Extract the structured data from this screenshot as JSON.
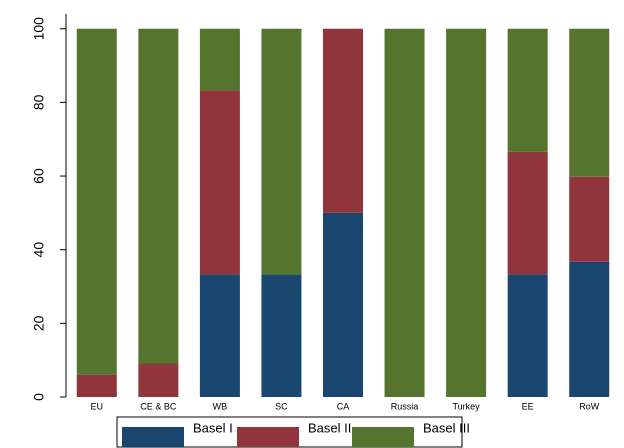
{
  "chart_data": {
    "type": "stacked_bar",
    "categories": [
      "EU",
      "CE & BC",
      "WB",
      "SC",
      "CA",
      "Russia",
      "Turkey",
      "EE",
      "RoW"
    ],
    "series": [
      {
        "name": "Basel I",
        "color": "#1a476f",
        "values": [
          0,
          0,
          33.3,
          33.3,
          50,
          0,
          0,
          33.3,
          36.7
        ]
      },
      {
        "name": "Basel II",
        "color": "#90353b",
        "values": [
          6,
          9.1,
          50,
          0,
          50,
          0,
          0,
          33.3,
          23.1
        ]
      },
      {
        "name": "Basel III",
        "color": "#55752f",
        "values": [
          94,
          90.9,
          16.7,
          66.7,
          0,
          100,
          100,
          33.4,
          40.2
        ]
      }
    ],
    "ylim": [
      0,
      104
    ],
    "yticks": [
      0,
      20,
      40,
      60,
      80,
      100
    ],
    "grid": false,
    "legend": "bottom"
  }
}
